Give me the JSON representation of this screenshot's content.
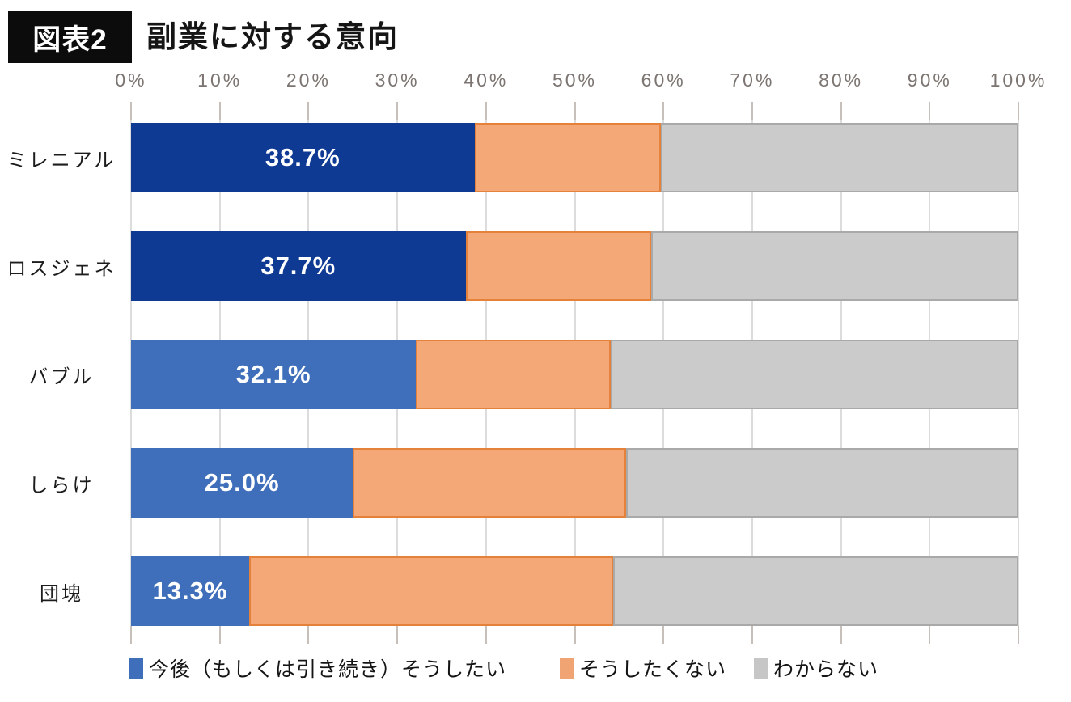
{
  "header": {
    "badge": "図表2",
    "title": "副業に対する意向"
  },
  "chart_data": {
    "type": "bar",
    "orientation": "horizontal-stacked",
    "title": "副業に対する意向",
    "categories": [
      "ミレニアル",
      "ロスジェネ",
      "バブル",
      "しらけ",
      "団塊"
    ],
    "series": [
      {
        "name": "今後（もしくは引き続き）そうしたい",
        "values": [
          38.7,
          37.7,
          32.1,
          25.0,
          13.3
        ],
        "row_fills": [
          "#0e3a94",
          "#0e3a94",
          "#3f6fba",
          "#3f6fba",
          "#3f6fba"
        ]
      },
      {
        "name": "そうしたくない",
        "values": [
          21.0,
          20.9,
          22.0,
          30.8,
          41.0
        ],
        "fill": "#f4a877",
        "border": "#e4813a"
      },
      {
        "name": "わからない",
        "values": [
          40.3,
          41.4,
          45.9,
          44.2,
          45.7
        ],
        "fill": "#cbcbcb",
        "border": "#a9a9a9"
      }
    ],
    "value_labels": [
      "38.7%",
      "37.7%",
      "32.1%",
      "25.0%",
      "13.3%"
    ],
    "x_ticks": [
      "0%",
      "10%",
      "20%",
      "30%",
      "40%",
      "50%",
      "60%",
      "70%",
      "80%",
      "90%",
      "100%"
    ],
    "xlim": [
      0,
      100
    ],
    "grid": true,
    "legend_position": "bottom"
  },
  "legend": {
    "items": [
      {
        "label": "今後（もしくは引き続き）そうしたい",
        "color": "#3f6fba"
      },
      {
        "label": "そうしたくない",
        "color": "#f0a473"
      },
      {
        "label": "わからない",
        "color": "#c6c6c6"
      }
    ]
  },
  "colors": {
    "value_label_text": "#ffffff",
    "gridline": "#dcdcdc",
    "tick": "#c6bfba",
    "axis_text": "#7b7470",
    "category_text": "#1c1c1c",
    "title_text": "#151515",
    "badge_bg": "#0c0c0c",
    "badge_text": "#ffffff"
  }
}
